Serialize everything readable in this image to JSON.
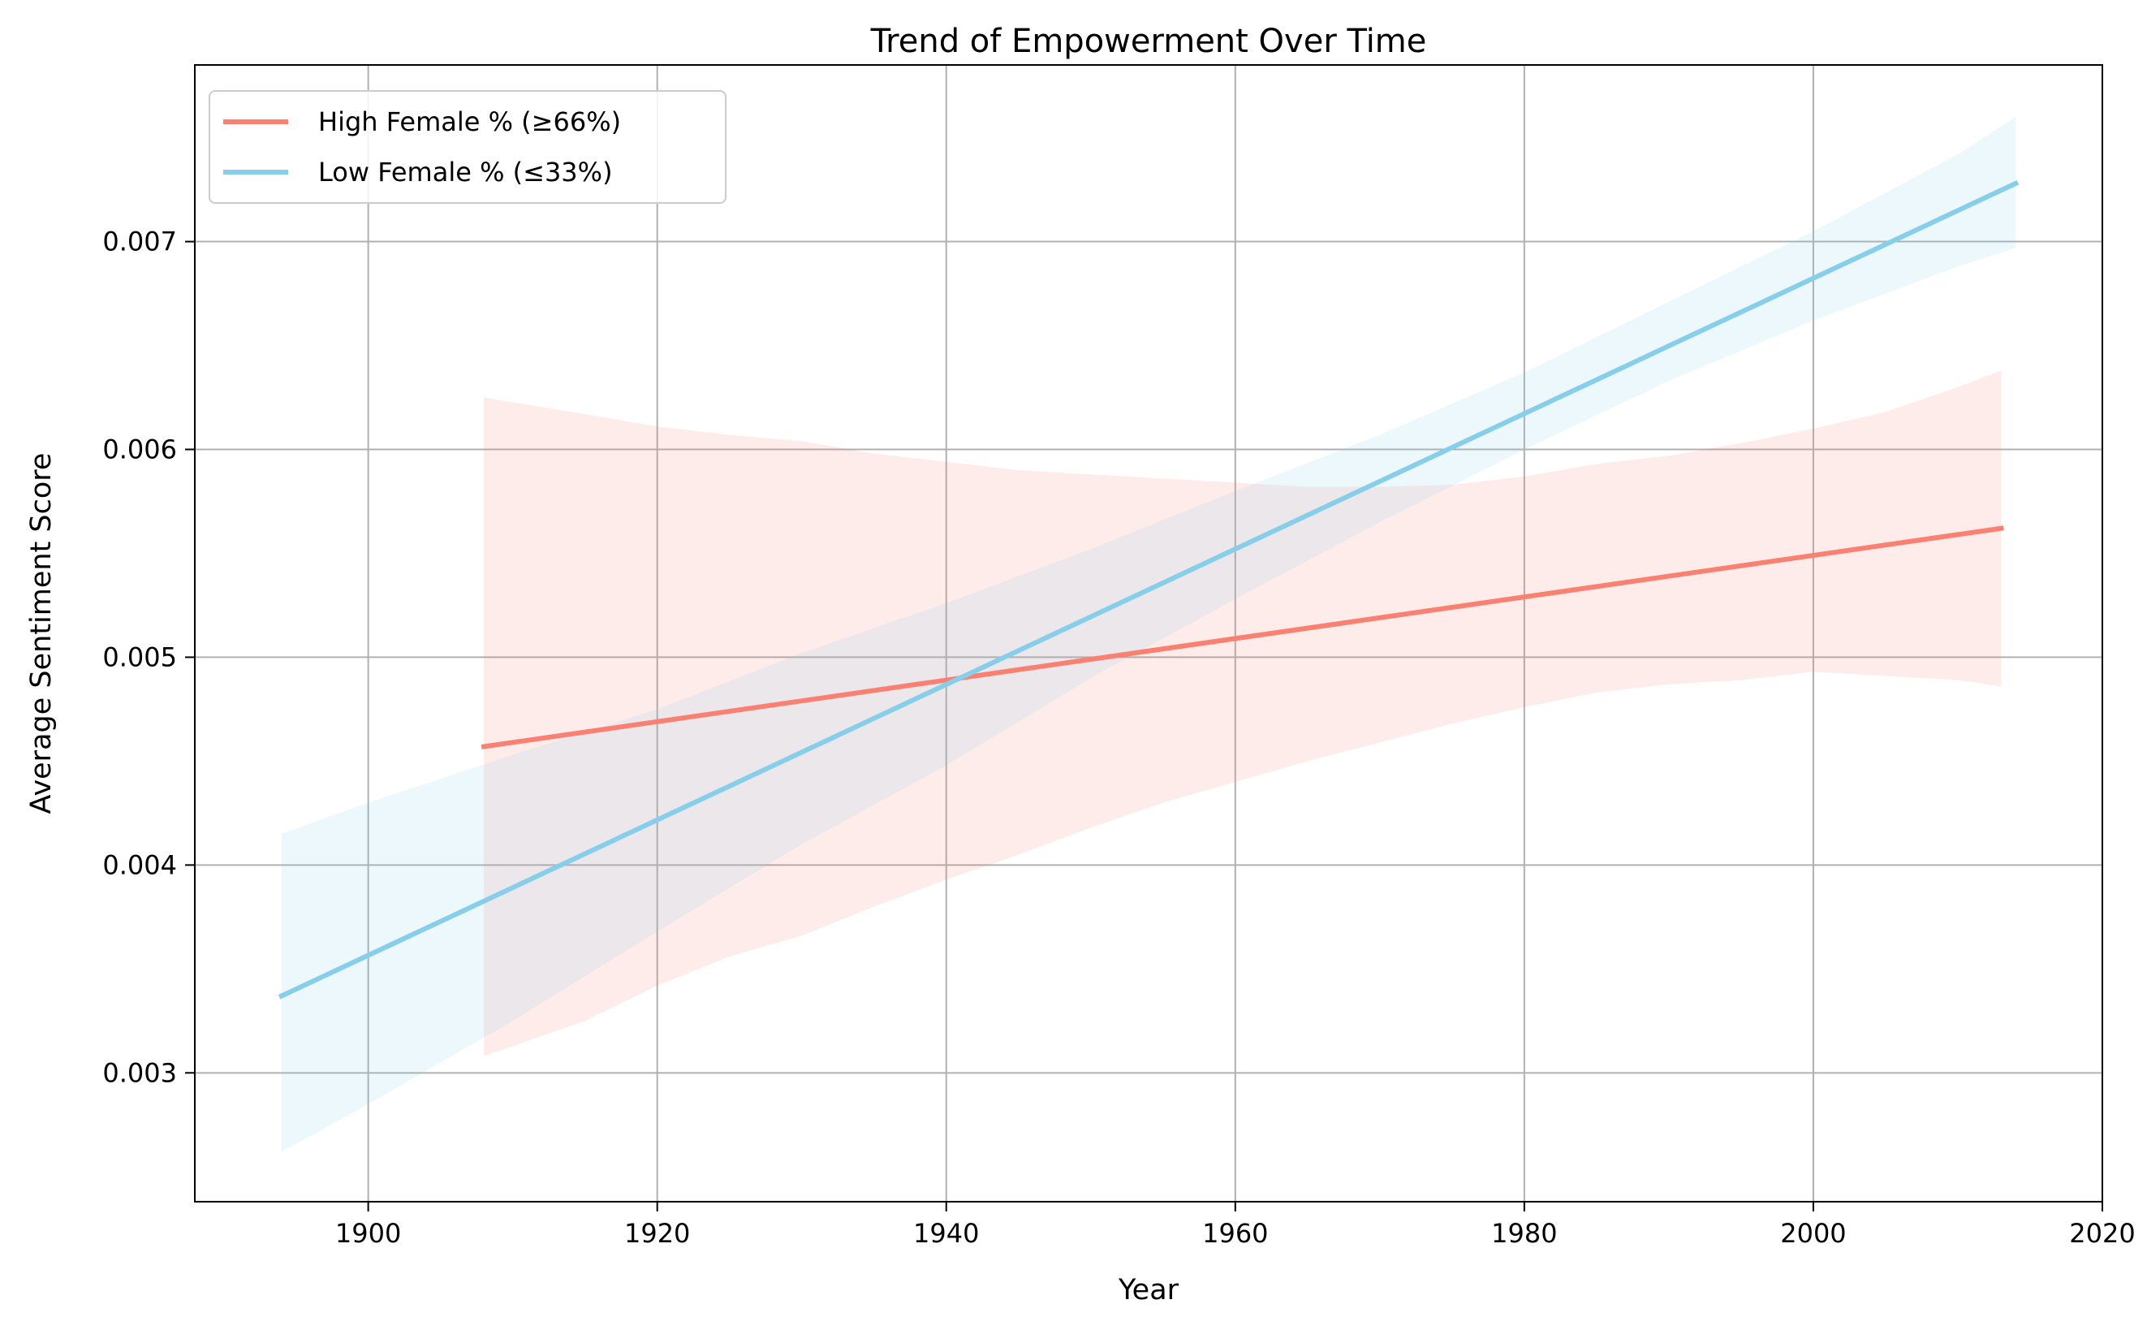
{
  "chart_data": {
    "type": "line",
    "title": "Trend of Empowerment Over Time",
    "xlabel": "Year",
    "ylabel": "Average Sentiment Score",
    "xlim": [
      1888,
      2020
    ],
    "ylim": [
      0.00238,
      0.00785
    ],
    "x_ticks": [
      1900,
      1920,
      1940,
      1960,
      1980,
      2000,
      2020
    ],
    "x_tick_labels": [
      "1900",
      "1920",
      "1940",
      "1960",
      "1980",
      "2000",
      "2020"
    ],
    "y_ticks": [
      0.003,
      0.004,
      0.005,
      0.006,
      0.007
    ],
    "y_tick_labels": [
      "0.003",
      "0.004",
      "0.005",
      "0.006",
      "0.007"
    ],
    "grid": true,
    "legend_position": "top-left",
    "series": [
      {
        "name": "High Female % (≥66%)",
        "color": "#fa8072",
        "x": [
          1908,
          2013
        ],
        "y": [
          0.00457,
          0.00562
        ],
        "band": {
          "x": [
            1908,
            1915,
            1920,
            1925,
            1930,
            1935,
            1940,
            1945,
            1950,
            1955,
            1960,
            1965,
            1970,
            1975,
            1980,
            1985,
            1990,
            1995,
            2000,
            2005,
            2010,
            2013
          ],
          "upper": [
            0.00625,
            0.00617,
            0.00611,
            0.00607,
            0.00604,
            0.00598,
            0.00594,
            0.0059,
            0.00588,
            0.00586,
            0.00584,
            0.00582,
            0.00582,
            0.00583,
            0.00587,
            0.00593,
            0.00597,
            0.00603,
            0.0061,
            0.00618,
            0.0063,
            0.00638
          ],
          "lower": [
            0.00308,
            0.00325,
            0.00342,
            0.00356,
            0.00366,
            0.0038,
            0.00393,
            0.00405,
            0.00418,
            0.0043,
            0.0044,
            0.0045,
            0.00459,
            0.00468,
            0.00476,
            0.00483,
            0.00487,
            0.00489,
            0.00493,
            0.00491,
            0.00489,
            0.00486
          ]
        }
      },
      {
        "name": "Low Female % (≤33%)",
        "color": "#87ceeb",
        "x": [
          1894,
          2014
        ],
        "y": [
          0.00337,
          0.00728
        ],
        "band": {
          "x": [
            1894,
            1900,
            1910,
            1920,
            1930,
            1940,
            1950,
            1960,
            1970,
            1980,
            1990,
            2000,
            2010,
            2014
          ],
          "upper": [
            0.00415,
            0.0043,
            0.00453,
            0.00475,
            0.00502,
            0.00526,
            0.00552,
            0.0058,
            0.00607,
            0.00637,
            0.00671,
            0.00705,
            0.00742,
            0.0076
          ],
          "lower": [
            0.00262,
            0.00285,
            0.00325,
            0.00368,
            0.0041,
            0.00448,
            0.0049,
            0.00528,
            0.00565,
            0.006,
            0.00633,
            0.00662,
            0.00688,
            0.00697
          ]
        }
      }
    ]
  }
}
